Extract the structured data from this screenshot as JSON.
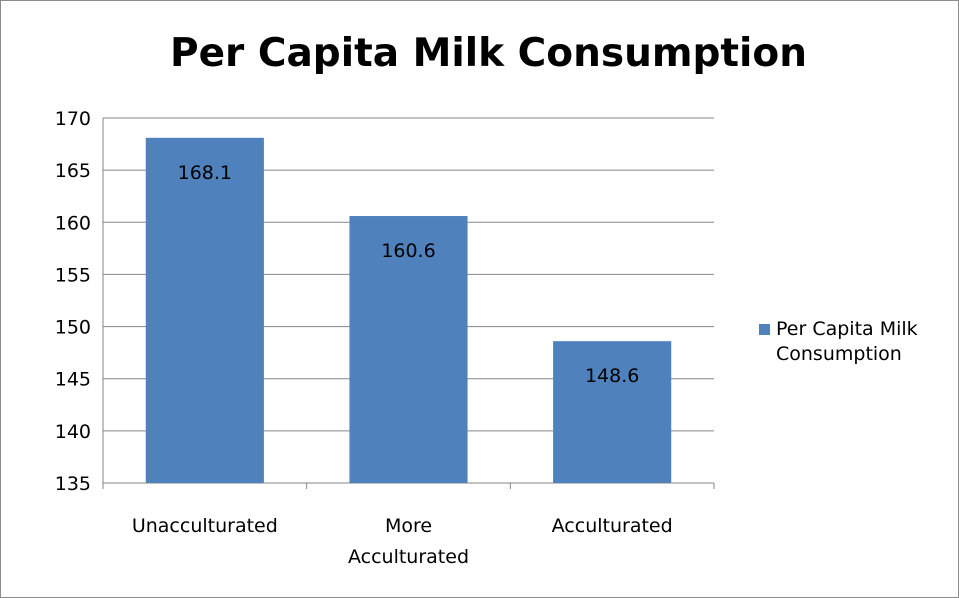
{
  "chart_data": {
    "type": "bar",
    "title": "Per Capita Milk Consumption",
    "xlabel": "",
    "ylabel": "",
    "categories": [
      "Unacculturated",
      "More Acculturated",
      "Acculturated"
    ],
    "series": [
      {
        "name": "Per Capita Milk Consumption",
        "values": [
          168.1,
          160.6,
          148.6
        ],
        "color": "#4f81bd"
      }
    ],
    "data_labels": [
      "168.1",
      "160.6",
      "148.6"
    ],
    "ylim": [
      135,
      170
    ],
    "yticks": [
      135,
      140,
      145,
      150,
      155,
      160,
      165,
      170
    ],
    "grid": true,
    "legend_position": "right"
  }
}
